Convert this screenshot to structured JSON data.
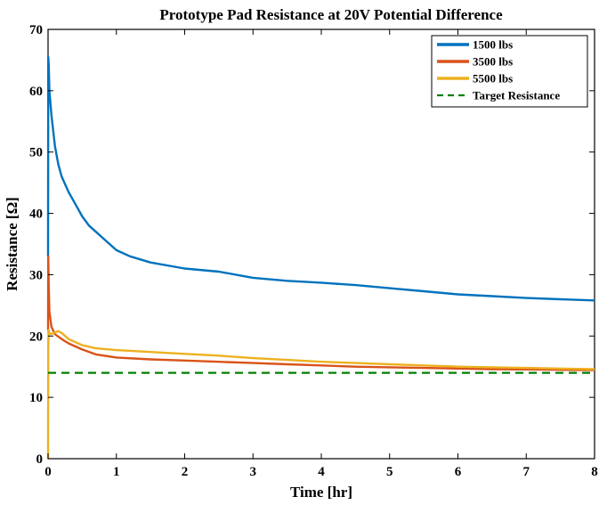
{
  "chart_data": {
    "type": "line",
    "title": "Prototype Pad Resistance at 20V Potential Difference",
    "xlabel": "Time [hr]",
    "ylabel": "Resistance [Ω]",
    "xlim": [
      0,
      8
    ],
    "ylim": [
      0,
      70
    ],
    "x_ticks": [
      0,
      1,
      2,
      3,
      4,
      5,
      6,
      7,
      8
    ],
    "y_ticks": [
      0,
      10,
      20,
      30,
      40,
      50,
      60,
      70
    ],
    "x_tick_labels": [
      "0",
      "1",
      "2",
      "3",
      "4",
      "5",
      "6",
      "7",
      "8"
    ],
    "y_tick_labels": [
      "0",
      "10",
      "20",
      "30",
      "40",
      "50",
      "60",
      "70"
    ],
    "grid": false,
    "legend_position": "top-right",
    "series": [
      {
        "name": "1500 lbs",
        "color": "#0072BD",
        "style": "solid",
        "x": [
          0,
          0.003,
          0.01,
          0.02,
          0.05,
          0.1,
          0.15,
          0.2,
          0.3,
          0.4,
          0.5,
          0.6,
          0.7,
          0.8,
          1.0,
          1.2,
          1.5,
          2.0,
          2.5,
          3.0,
          3.5,
          4.0,
          4.5,
          5.0,
          5.5,
          6.0,
          6.5,
          7.0,
          7.5,
          8.0
        ],
        "y": [
          33,
          65.5,
          64,
          60,
          56,
          51,
          48,
          46,
          43.5,
          41.5,
          39.5,
          38,
          37,
          36,
          34,
          33,
          32,
          31,
          30.5,
          29.5,
          29,
          28.7,
          28.3,
          27.8,
          27.3,
          26.8,
          26.5,
          26.2,
          26.0,
          25.8
        ]
      },
      {
        "name": "3500 lbs",
        "color": "#D95319",
        "style": "solid",
        "x": [
          0,
          0.003,
          0.01,
          0.02,
          0.05,
          0.1,
          0.2,
          0.3,
          0.5,
          0.7,
          1.0,
          1.5,
          2.0,
          2.5,
          3.0,
          3.5,
          4.0,
          4.5,
          5.0,
          5.5,
          6.0,
          6.5,
          7.0,
          7.5,
          8.0
        ],
        "y": [
          21,
          33,
          28,
          24,
          21.5,
          20.3,
          19.5,
          18.8,
          17.8,
          17.0,
          16.5,
          16.2,
          16.0,
          15.8,
          15.6,
          15.4,
          15.2,
          15.0,
          14.9,
          14.8,
          14.7,
          14.6,
          14.55,
          14.5,
          14.45
        ]
      },
      {
        "name": "5500 lbs",
        "color": "#EDB120",
        "style": "solid",
        "x": [
          0,
          0.003,
          0.01,
          0.02,
          0.05,
          0.1,
          0.15,
          0.2,
          0.3,
          0.5,
          0.7,
          1.0,
          1.5,
          2.0,
          2.5,
          3.0,
          3.5,
          4.0,
          4.5,
          5.0,
          5.5,
          6.0,
          6.5,
          7.0,
          7.5,
          8.0
        ],
        "y": [
          0,
          18,
          21,
          20.5,
          20.3,
          20.6,
          20.8,
          20.5,
          19.5,
          18.5,
          18.0,
          17.7,
          17.4,
          17.1,
          16.8,
          16.4,
          16.1,
          15.8,
          15.6,
          15.4,
          15.2,
          15.0,
          14.9,
          14.8,
          14.7,
          14.6
        ]
      },
      {
        "name": "Target Resistance",
        "color": "#008000",
        "style": "dashed",
        "x": [
          0,
          8
        ],
        "y": [
          14,
          14
        ]
      }
    ]
  }
}
